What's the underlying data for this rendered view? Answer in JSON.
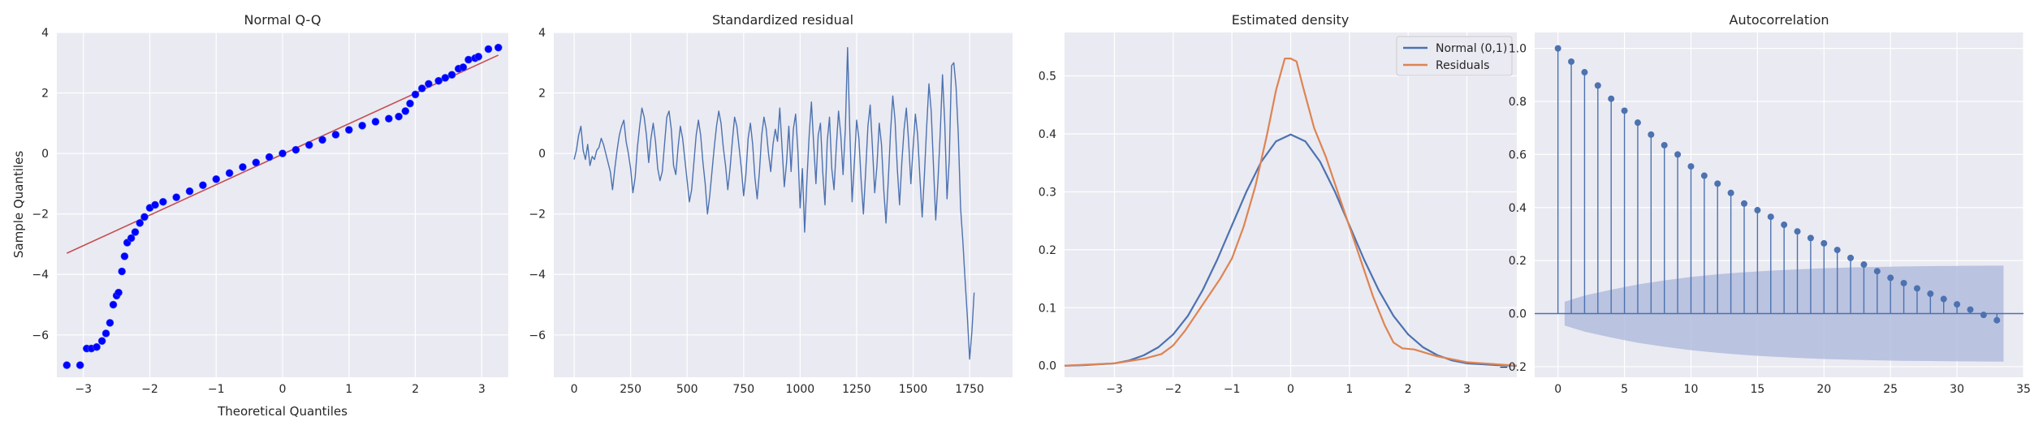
{
  "figure": {
    "background": "#ffffff",
    "axes_face": "#eaeaf2",
    "grid_color": "#ffffff",
    "text_color": "#262626"
  },
  "chart_data": [
    {
      "type": "scatter",
      "title": "Normal Q-Q",
      "xlabel": "Theoretical Quantiles",
      "ylabel": "Sample Quantiles",
      "xlim": [
        -3.4,
        3.4
      ],
      "ylim": [
        -7.4,
        4.0
      ],
      "xticks": [
        -3,
        -2,
        -1,
        0,
        1,
        2,
        3
      ],
      "yticks": [
        -6,
        -4,
        -2,
        0,
        2,
        4
      ],
      "grid": true,
      "point_color": "#0000ff",
      "line_color": "#c44e52",
      "reference_line": {
        "x": [
          -3.25,
          3.25
        ],
        "y": [
          -3.3,
          3.25
        ]
      },
      "points": [
        [
          -3.25,
          -7.0
        ],
        [
          -3.05,
          -7.0
        ],
        [
          -2.95,
          -6.45
        ],
        [
          -2.88,
          -6.45
        ],
        [
          -2.8,
          -6.4
        ],
        [
          -2.72,
          -6.2
        ],
        [
          -2.66,
          -5.95
        ],
        [
          -2.6,
          -5.6
        ],
        [
          -2.55,
          -5.0
        ],
        [
          -2.5,
          -4.7
        ],
        [
          -2.47,
          -4.6
        ],
        [
          -2.42,
          -3.9
        ],
        [
          -2.38,
          -3.4
        ],
        [
          -2.34,
          -2.95
        ],
        [
          -2.28,
          -2.8
        ],
        [
          -2.22,
          -2.6
        ],
        [
          -2.15,
          -2.3
        ],
        [
          -2.08,
          -2.1
        ],
        [
          -2.0,
          -1.8
        ],
        [
          -1.92,
          -1.7
        ],
        [
          -1.8,
          -1.6
        ],
        [
          -1.6,
          -1.45
        ],
        [
          -1.4,
          -1.25
        ],
        [
          -1.2,
          -1.05
        ],
        [
          -1.0,
          -0.85
        ],
        [
          -0.8,
          -0.65
        ],
        [
          -0.6,
          -0.45
        ],
        [
          -0.4,
          -0.3
        ],
        [
          -0.2,
          -0.12
        ],
        [
          0.0,
          0.0
        ],
        [
          0.2,
          0.12
        ],
        [
          0.4,
          0.28
        ],
        [
          0.6,
          0.45
        ],
        [
          0.8,
          0.62
        ],
        [
          1.0,
          0.78
        ],
        [
          1.2,
          0.92
        ],
        [
          1.4,
          1.05
        ],
        [
          1.6,
          1.15
        ],
        [
          1.75,
          1.22
        ],
        [
          1.85,
          1.4
        ],
        [
          1.92,
          1.65
        ],
        [
          2.0,
          1.95
        ],
        [
          2.1,
          2.15
        ],
        [
          2.2,
          2.3
        ],
        [
          2.35,
          2.4
        ],
        [
          2.45,
          2.5
        ],
        [
          2.55,
          2.6
        ],
        [
          2.65,
          2.8
        ],
        [
          2.72,
          2.85
        ],
        [
          2.8,
          3.1
        ],
        [
          2.9,
          3.15
        ],
        [
          2.95,
          3.2
        ],
        [
          3.1,
          3.45
        ],
        [
          3.25,
          3.5
        ]
      ]
    },
    {
      "type": "line",
      "title": "Standardized residual",
      "xlim": [
        -90,
        1940
      ],
      "ylim": [
        -7.4,
        4.0
      ],
      "xticks": [
        0,
        250,
        500,
        750,
        1000,
        1250,
        1500,
        1750
      ],
      "yticks": [
        -6,
        -4,
        -2,
        0,
        2,
        4
      ],
      "grid": true,
      "line_color": "#4c72b0",
      "x_start": 0,
      "x_step": 10,
      "values": [
        -0.2,
        0.1,
        0.6,
        0.9,
        0.1,
        -0.2,
        0.3,
        -0.4,
        -0.1,
        -0.2,
        0.1,
        0.2,
        0.5,
        0.3,
        0.0,
        -0.3,
        -0.6,
        -1.2,
        -0.5,
        0.1,
        0.6,
        0.9,
        1.1,
        0.4,
        0.0,
        -0.5,
        -1.3,
        -0.8,
        0.2,
        0.9,
        1.5,
        1.2,
        0.6,
        -0.3,
        0.5,
        1.0,
        0.4,
        -0.5,
        -0.9,
        -0.6,
        0.3,
        1.2,
        1.4,
        0.8,
        -0.4,
        -0.7,
        0.2,
        0.9,
        0.5,
        -0.2,
        -0.9,
        -1.6,
        -1.2,
        -0.3,
        0.6,
        1.1,
        0.6,
        -0.3,
        -1.0,
        -2.0,
        -1.4,
        -0.6,
        0.2,
        0.9,
        1.4,
        1.0,
        0.2,
        -0.4,
        -1.2,
        -0.5,
        0.4,
        1.2,
        0.9,
        0.2,
        -0.5,
        -1.4,
        -0.7,
        0.5,
        1.0,
        0.3,
        -0.8,
        -1.5,
        -0.6,
        0.6,
        1.2,
        0.8,
        0.0,
        -0.6,
        0.3,
        0.8,
        0.4,
        1.5,
        0.2,
        -1.1,
        -0.3,
        0.9,
        -0.6,
        0.8,
        1.3,
        0.1,
        -1.8,
        -0.5,
        -2.6,
        -0.9,
        0.6,
        1.7,
        0.3,
        -1.0,
        0.6,
        1.0,
        -0.6,
        -1.7,
        0.4,
        1.2,
        -0.5,
        -1.2,
        0.2,
        1.4,
        0.6,
        -0.7,
        0.8,
        3.5,
        0.7,
        -1.6,
        -0.3,
        1.1,
        0.5,
        -0.9,
        -2.0,
        -0.6,
        0.9,
        1.6,
        0.2,
        -1.3,
        -0.4,
        1.0,
        0.3,
        -1.2,
        -2.3,
        -0.9,
        0.7,
        1.9,
        1.1,
        -0.5,
        -1.7,
        -0.3,
        0.8,
        1.5,
        0.4,
        -1.0,
        0.2,
        1.3,
        0.6,
        -0.8,
        -2.1,
        -0.7,
        0.9,
        2.3,
        1.4,
        -0.4,
        -2.2,
        -0.9,
        0.7,
        2.6,
        1.0,
        -1.5,
        -0.2,
        2.9,
        3.0,
        2.2,
        0.6,
        -1.8,
        -2.9,
        -4.2,
        -5.4,
        -6.8,
        -5.9,
        -4.6
      ]
    },
    {
      "type": "line",
      "title": "Estimated density",
      "xlim": [
        -3.85,
        3.85
      ],
      "ylim": [
        -0.02,
        0.575
      ],
      "xticks": [
        -3,
        -2,
        -1,
        0,
        1,
        2,
        3
      ],
      "yticks": [
        0.0,
        0.1,
        0.2,
        0.3,
        0.4,
        0.5
      ],
      "grid": true,
      "legend_position": "top-right",
      "series": [
        {
          "name": "Normal (0,1)",
          "color": "#4c72b0",
          "x": [
            -3.85,
            -3.5,
            -3.0,
            -2.75,
            -2.5,
            -2.25,
            -2.0,
            -1.75,
            -1.5,
            -1.25,
            -1.0,
            -0.75,
            -0.5,
            -0.25,
            0.0,
            0.25,
            0.5,
            0.75,
            1.0,
            1.25,
            1.5,
            1.75,
            2.0,
            2.25,
            2.5,
            2.75,
            3.0,
            3.5,
            3.85
          ],
          "y": [
            0.0,
            0.001,
            0.004,
            0.009,
            0.018,
            0.032,
            0.054,
            0.086,
            0.13,
            0.183,
            0.242,
            0.301,
            0.352,
            0.387,
            0.399,
            0.387,
            0.352,
            0.301,
            0.242,
            0.183,
            0.13,
            0.086,
            0.054,
            0.032,
            0.018,
            0.009,
            0.004,
            0.001,
            0.0
          ]
        },
        {
          "name": "Residuals",
          "color": "#dd8452",
          "x": [
            -3.85,
            -3.0,
            -2.5,
            -2.2,
            -2.0,
            -1.8,
            -1.6,
            -1.4,
            -1.2,
            -1.0,
            -0.8,
            -0.6,
            -0.4,
            -0.25,
            -0.1,
            0.0,
            0.1,
            0.2,
            0.4,
            0.6,
            0.8,
            1.0,
            1.2,
            1.4,
            1.6,
            1.75,
            1.9,
            2.1,
            2.5,
            3.0,
            3.85
          ],
          "y": [
            0.0,
            0.004,
            0.012,
            0.02,
            0.035,
            0.06,
            0.09,
            0.12,
            0.15,
            0.185,
            0.24,
            0.31,
            0.4,
            0.475,
            0.53,
            0.53,
            0.525,
            0.485,
            0.41,
            0.36,
            0.3,
            0.24,
            0.18,
            0.12,
            0.07,
            0.04,
            0.03,
            0.028,
            0.016,
            0.006,
            0.0
          ]
        }
      ]
    },
    {
      "type": "stem",
      "title": "Autocorrelation",
      "xlim": [
        -1.75,
        35.0
      ],
      "ylim": [
        -0.24,
        1.06
      ],
      "xticks": [
        0,
        5,
        10,
        15,
        20,
        25,
        30,
        35
      ],
      "yticks": [
        -0.2,
        0.0,
        0.2,
        0.4,
        0.6,
        0.8,
        1.0
      ],
      "grid": true,
      "line_color": "#4c72b0",
      "band_color": "#aab6da",
      "lags": [
        0,
        1,
        2,
        3,
        4,
        5,
        6,
        7,
        8,
        9,
        10,
        11,
        12,
        13,
        14,
        15,
        16,
        17,
        18,
        19,
        20,
        21,
        22,
        23,
        24,
        25,
        26,
        27,
        28,
        29,
        30,
        31,
        32,
        33
      ],
      "values": [
        1.0,
        0.95,
        0.91,
        0.86,
        0.81,
        0.765,
        0.72,
        0.675,
        0.635,
        0.6,
        0.555,
        0.52,
        0.49,
        0.455,
        0.415,
        0.39,
        0.365,
        0.335,
        0.31,
        0.285,
        0.265,
        0.24,
        0.21,
        0.185,
        0.16,
        0.135,
        0.115,
        0.095,
        0.075,
        0.055,
        0.035,
        0.015,
        -0.005,
        -0.025
      ],
      "confidence_band": {
        "x": [
          0.5,
          2,
          4,
          6,
          8,
          10,
          12,
          14,
          16,
          18,
          20,
          22,
          24,
          26,
          28,
          30,
          33.5
        ],
        "upper": [
          0.045,
          0.068,
          0.09,
          0.11,
          0.125,
          0.138,
          0.148,
          0.156,
          0.162,
          0.167,
          0.171,
          0.174,
          0.176,
          0.178,
          0.179,
          0.18,
          0.181
        ]
      }
    }
  ]
}
